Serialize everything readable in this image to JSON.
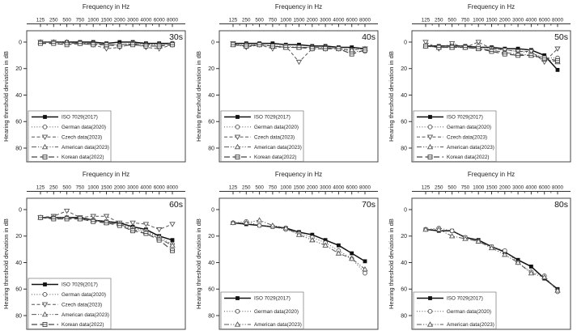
{
  "figure": {
    "background": "#ffffff",
    "x_axis_title": "Frequency in Hz",
    "y_axis_title": "Hearing threshold deviation in dB",
    "frequencies_hz": [
      "125",
      "250",
      "500",
      "750",
      "1000",
      "1500",
      "2000",
      "3000",
      "4000",
      "6000",
      "8000"
    ],
    "y_ticks_db": [
      0,
      20,
      40,
      60,
      80
    ],
    "colors": {
      "primary_series": "#111111",
      "secondary_series": "#555555",
      "frame": "#444444",
      "text": "#222222"
    }
  },
  "chart_data": [
    {
      "type": "line",
      "title": "Frequency in Hz",
      "age_group_label": "30s",
      "ylabel": "Hearing threshold deviation in dB",
      "x_categories": [
        "125",
        "250",
        "500",
        "750",
        "1000",
        "1500",
        "2000",
        "3000",
        "4000",
        "6000",
        "8000"
      ],
      "y_ticks": [
        0,
        20,
        40,
        60,
        80
      ],
      "y_axis_inverted": true,
      "ylim": [
        -8,
        90
      ],
      "legend_position": "bottom-left",
      "series": [
        {
          "name": "ISO 7029(2017)",
          "marker": "filled-square",
          "line_style": "solid",
          "color": "#111111",
          "values": [
            0,
            0,
            0,
            0,
            0,
            1,
            0,
            0,
            1,
            1,
            1
          ]
        },
        {
          "name": "German data(2020)",
          "marker": "open-circle",
          "line_style": "dotted",
          "color": "#555555",
          "values": [
            0,
            0,
            1,
            1,
            1,
            2,
            2,
            1,
            2,
            2,
            2
          ]
        },
        {
          "name": "Czech data(2023)",
          "marker": "open-triangle-down",
          "line_style": "dashed",
          "color": "#555555",
          "values": [
            0,
            0,
            1,
            1,
            2,
            5,
            4,
            1,
            4,
            5,
            2
          ]
        },
        {
          "name": "American data(2023)",
          "marker": "open-triangle-up",
          "line_style": "dash-dot-dot",
          "color": "#555555",
          "values": [
            0,
            0,
            0,
            1,
            1,
            2,
            2,
            1,
            2,
            2,
            1
          ]
        },
        {
          "name": "Korean data(2022)",
          "marker": "open-square-minus",
          "line_style": "long-dash",
          "color": "#444444",
          "values": [
            1,
            1,
            2,
            1,
            2,
            2,
            3,
            2,
            3,
            3,
            2
          ]
        }
      ]
    },
    {
      "type": "line",
      "title": "Frequency in Hz",
      "age_group_label": "40s",
      "ylabel": "Hearing threshold deviation in dB",
      "x_categories": [
        "125",
        "250",
        "500",
        "750",
        "1000",
        "1500",
        "2000",
        "3000",
        "4000",
        "6000",
        "8000"
      ],
      "y_ticks": [
        0,
        20,
        40,
        60,
        80
      ],
      "y_axis_inverted": true,
      "ylim": [
        -8,
        90
      ],
      "legend_position": "bottom-left",
      "series": [
        {
          "name": "ISO 7029(2017)",
          "marker": "filled-square",
          "line_style": "solid",
          "color": "#111111",
          "values": [
            1,
            1,
            1,
            1,
            2,
            2,
            3,
            3,
            4,
            4,
            5
          ]
        },
        {
          "name": "German data(2020)",
          "marker": "open-circle",
          "line_style": "dotted",
          "color": "#555555",
          "values": [
            2,
            2,
            2,
            3,
            3,
            4,
            4,
            4,
            5,
            7,
            7
          ]
        },
        {
          "name": "Czech data(2023)",
          "marker": "open-triangle-down",
          "line_style": "dashed",
          "color": "#555555",
          "values": [
            1,
            4,
            2,
            5,
            3,
            15,
            5,
            5,
            5,
            6,
            5
          ]
        },
        {
          "name": "American data(2023)",
          "marker": "open-triangle-up",
          "line_style": "dash-dot-dot",
          "color": "#555555",
          "values": [
            2,
            3,
            2,
            3,
            4,
            4,
            4,
            4,
            5,
            6,
            5
          ]
        },
        {
          "name": "Korean data(2022)",
          "marker": "open-square-minus",
          "line_style": "long-dash",
          "color": "#444444",
          "values": [
            2,
            3,
            2,
            3,
            4,
            4,
            5,
            5,
            5,
            9,
            6
          ]
        }
      ]
    },
    {
      "type": "line",
      "title": "Frequency in Hz",
      "age_group_label": "50s",
      "ylabel": "Hearing threshold deviation in dB",
      "x_categories": [
        "125",
        "250",
        "500",
        "750",
        "1000",
        "1500",
        "2000",
        "3000",
        "4000",
        "6000",
        "8000"
      ],
      "y_ticks": [
        0,
        20,
        40,
        60,
        80
      ],
      "y_axis_inverted": true,
      "ylim": [
        -8,
        90
      ],
      "legend_position": "bottom-left",
      "series": [
        {
          "name": "ISO 7029(2017)",
          "marker": "filled-square",
          "line_style": "solid",
          "color": "#111111",
          "values": [
            3,
            3,
            3,
            3,
            4,
            4,
            5,
            5,
            6,
            10,
            21
          ]
        },
        {
          "name": "German data(2020)",
          "marker": "open-circle",
          "line_style": "dotted",
          "color": "#555555",
          "values": [
            3,
            4,
            4,
            4,
            3,
            5,
            6,
            7,
            8,
            12,
            12
          ]
        },
        {
          "name": "Czech data(2023)",
          "marker": "open-triangle-down",
          "line_style": "dashed",
          "color": "#555555",
          "values": [
            0,
            5,
            1,
            4,
            0,
            5,
            6,
            7,
            7,
            15,
            5
          ]
        },
        {
          "name": "American data(2023)",
          "marker": "open-triangle-up",
          "line_style": "dash-dot-dot",
          "color": "#555555",
          "values": [
            3,
            4,
            4,
            4,
            5,
            6,
            8,
            9,
            10,
            13,
            15
          ]
        },
        {
          "name": "Korean data(2022)",
          "marker": "open-square-minus",
          "line_style": "long-dash",
          "color": "#444444",
          "values": [
            3,
            4,
            4,
            4,
            5,
            7,
            9,
            10,
            10,
            12,
            14
          ]
        }
      ]
    },
    {
      "type": "line",
      "title": "Frequency in Hz",
      "age_group_label": "60s",
      "ylabel": "Hearing threshold deviation in dB",
      "x_categories": [
        "125",
        "250",
        "500",
        "750",
        "1000",
        "1500",
        "2000",
        "3000",
        "4000",
        "6000",
        "8000"
      ],
      "y_ticks": [
        0,
        20,
        40,
        60,
        80
      ],
      "y_axis_inverted": true,
      "ylim": [
        -8,
        90
      ],
      "legend_position": "bottom-left",
      "series": [
        {
          "name": "ISO 7029(2017)",
          "marker": "filled-square",
          "line_style": "solid",
          "color": "#111111",
          "values": [
            6,
            6,
            6,
            6,
            8,
            9,
            10,
            13,
            15,
            20,
            23
          ]
        },
        {
          "name": "German data(2020)",
          "marker": "open-circle",
          "line_style": "dotted",
          "color": "#555555",
          "values": [
            6,
            6,
            6,
            7,
            8,
            9,
            11,
            14,
            16,
            21,
            26
          ]
        },
        {
          "name": "Czech data(2023)",
          "marker": "open-triangle-down",
          "line_style": "dashed",
          "color": "#555555",
          "values": [
            6,
            5,
            1,
            6,
            5,
            5,
            10,
            10,
            11,
            15,
            11
          ]
        },
        {
          "name": "American data(2023)",
          "marker": "open-triangle-up",
          "line_style": "dash-dot-dot",
          "color": "#555555",
          "values": [
            6,
            6,
            6,
            7,
            8,
            10,
            11,
            15,
            17,
            22,
            27
          ]
        },
        {
          "name": "Korean data(2022)",
          "marker": "open-square-minus",
          "line_style": "long-dash",
          "color": "#444444",
          "values": [
            6,
            7,
            7,
            7,
            9,
            10,
            12,
            16,
            18,
            23,
            31
          ]
        }
      ]
    },
    {
      "type": "line",
      "title": "Frequency in Hz",
      "age_group_label": "70s",
      "ylabel": "Hearing threshold deviation in dB",
      "x_categories": [
        "125",
        "250",
        "500",
        "750",
        "1000",
        "1500",
        "2000",
        "3000",
        "4000",
        "6000",
        "8000"
      ],
      "y_ticks": [
        0,
        20,
        40,
        60,
        80
      ],
      "y_axis_inverted": true,
      "ylim": [
        -8,
        90
      ],
      "legend_position": "bottom-left",
      "series": [
        {
          "name": "ISO 7029(2017)",
          "marker": "filled-square",
          "line_style": "solid",
          "color": "#111111",
          "values": [
            10,
            11,
            12,
            13,
            14,
            17,
            19,
            23,
            27,
            33,
            39
          ]
        },
        {
          "name": "German data(2020)",
          "marker": "open-circle",
          "line_style": "dotted",
          "color": "#555555",
          "values": [
            10,
            9,
            12,
            13,
            15,
            18,
            21,
            25,
            31,
            37,
            48
          ]
        },
        {
          "name": "American data(2023)",
          "marker": "open-triangle-up",
          "line_style": "dash-dot-dot",
          "color": "#555555",
          "values": [
            10,
            10,
            8,
            12,
            14,
            19,
            23,
            27,
            33,
            37,
            45
          ]
        }
      ]
    },
    {
      "type": "line",
      "title": "Frequency in Hz",
      "age_group_label": "80s",
      "ylabel": "Hearing threshold deviation in dB",
      "x_categories": [
        "125",
        "250",
        "500",
        "750",
        "1000",
        "1500",
        "2000",
        "3000",
        "4000",
        "6000",
        "8000"
      ],
      "y_ticks": [
        0,
        20,
        40,
        60,
        80
      ],
      "y_axis_inverted": true,
      "ylim": [
        -8,
        90
      ],
      "legend_position": "bottom-left",
      "series": [
        {
          "name": "ISO 7029(2017)",
          "marker": "filled-square",
          "line_style": "solid",
          "color": "#111111",
          "values": [
            15,
            16,
            16,
            21,
            23,
            28,
            32,
            38,
            43,
            52,
            60
          ]
        },
        {
          "name": "German data(2020)",
          "marker": "open-circle",
          "line_style": "dotted",
          "color": "#555555",
          "values": [
            15,
            14,
            16,
            21,
            24,
            28,
            31,
            40,
            47,
            50,
            62
          ]
        },
        {
          "name": "American data(2023)",
          "marker": "open-triangle-up",
          "line_style": "dash-dot-dot",
          "color": "#555555",
          "values": [
            15,
            15,
            20,
            22,
            24,
            29,
            34,
            40,
            48,
            51,
            61
          ]
        }
      ]
    }
  ]
}
